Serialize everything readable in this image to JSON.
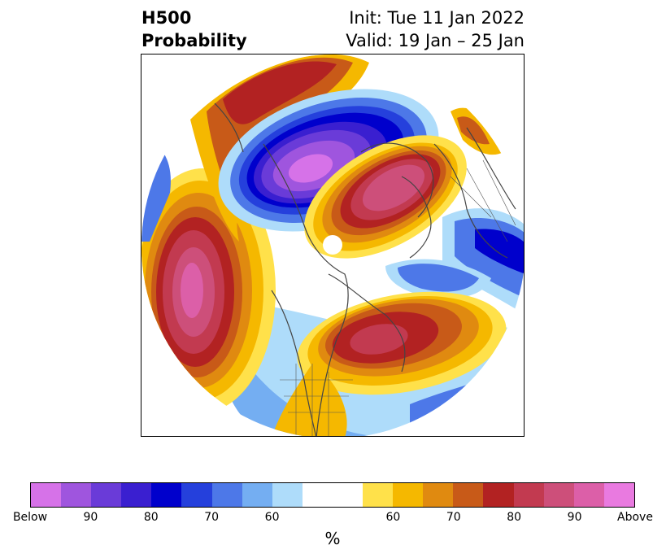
{
  "title": {
    "left_line1": "H500",
    "left_line2": "Probability",
    "right_line1": "Init: Tue 11 Jan 2022",
    "right_line2": "Valid: 19 Jan – 25 Jan"
  },
  "colorbar": {
    "colors": [
      "#d672e8",
      "#9f55de",
      "#6a3bd8",
      "#3a1fd0",
      "#0000cc",
      "#2540dc",
      "#4d78e8",
      "#74aef2",
      "#aedcfa",
      "#ffffff",
      "#ffffff",
      "#ffe14a",
      "#f5b800",
      "#e08a10",
      "#c85a18",
      "#b22222",
      "#c23a50",
      "#cd4f7a",
      "#dc5fa8",
      "#e97ae0"
    ],
    "tick_labels": [
      "Below",
      "90",
      "80",
      "70",
      "60",
      "",
      "60",
      "70",
      "80",
      "90",
      "Above"
    ],
    "unit": "%"
  },
  "map": {
    "projection": "north-polar-stereographic",
    "highlight_colors": {
      "above_high": "#d24f86",
      "above_mid": "#b22222",
      "below_high": "#8b45dd",
      "below_mid": "#0000cc"
    }
  }
}
